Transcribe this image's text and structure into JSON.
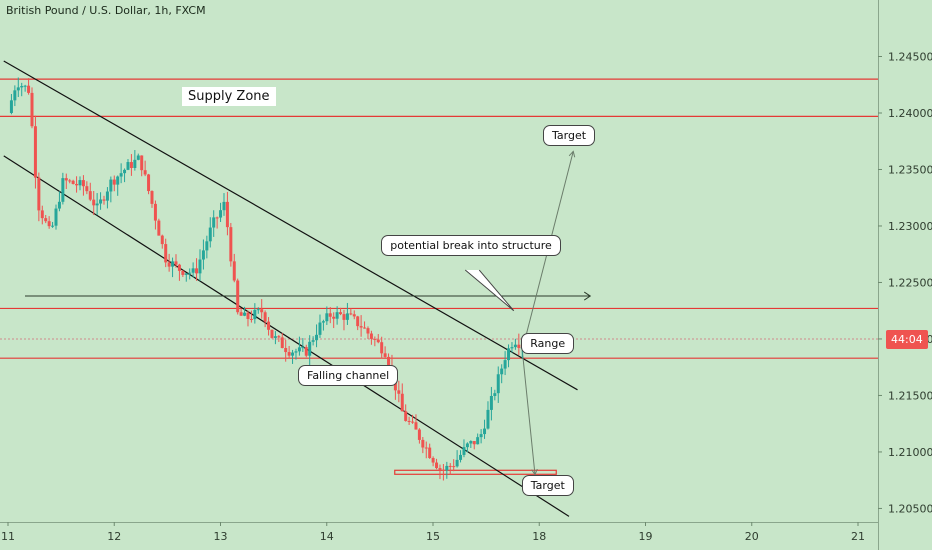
{
  "window": {
    "title": "British Pound / U.S. Dollar, 1h, FXCM"
  },
  "price_tag": "44:04",
  "colors": {
    "background": "#c8e6c9",
    "up": "#26a69a",
    "down": "#ef5350",
    "line": "#111111",
    "zone": "#e53935"
  },
  "chart_data": {
    "type": "candlestick",
    "title": "British Pound / U.S. Dollar, 1h, FXCM",
    "xlim": [
      11,
      21
    ],
    "ylim": [
      1.2038,
      1.25
    ],
    "x_ticks": [
      11,
      12,
      13,
      14,
      15,
      18,
      19,
      20,
      21
    ],
    "y_ticks": [
      "1.20500",
      "1.21000",
      "1.21500",
      "1.22000",
      "1.22500",
      "1.23000",
      "1.23500",
      "1.24000",
      "1.24500"
    ],
    "close_path": [
      [
        11.0,
        1.24
      ],
      [
        11.1,
        1.2428
      ],
      [
        11.25,
        1.242
      ],
      [
        11.35,
        1.232
      ],
      [
        11.5,
        1.2292
      ],
      [
        11.65,
        1.234
      ],
      [
        11.9,
        1.2335
      ],
      [
        12.05,
        1.2315
      ],
      [
        12.2,
        1.2338
      ],
      [
        12.4,
        1.2352
      ],
      [
        12.55,
        1.236
      ],
      [
        12.7,
        1.2318
      ],
      [
        12.85,
        1.2272
      ],
      [
        13.0,
        1.2262
      ],
      [
        13.2,
        1.2258
      ],
      [
        13.4,
        1.23
      ],
      [
        13.55,
        1.232
      ],
      [
        13.7,
        1.2222
      ],
      [
        13.8,
        1.2218
      ],
      [
        14.0,
        1.2225
      ],
      [
        14.1,
        1.2203
      ],
      [
        14.3,
        1.219
      ],
      [
        14.5,
        1.2188
      ],
      [
        14.65,
        1.221
      ],
      [
        14.8,
        1.2222
      ],
      [
        15.0,
        1.222
      ],
      [
        15.15,
        1.2212
      ],
      [
        15.3,
        1.22
      ],
      [
        15.45,
        1.2188
      ],
      [
        15.55,
        1.216
      ],
      [
        15.65,
        1.2132
      ],
      [
        15.8,
        1.2118
      ],
      [
        15.95,
        1.21
      ],
      [
        16.1,
        1.2083
      ],
      [
        16.25,
        1.209
      ],
      [
        16.4,
        1.2105
      ],
      [
        16.55,
        1.2112
      ],
      [
        16.7,
        1.2148
      ],
      [
        16.85,
        1.2185
      ],
      [
        16.95,
        1.22
      ],
      [
        17.05,
        1.2195
      ]
    ],
    "horizontal_levels": [
      1.243,
      1.2397,
      1.2227,
      1.2183
    ],
    "target_zone": {
      "from": 15.55,
      "to": 17.45,
      "level": 1.2082
    },
    "channel_upper": [
      [
        10.95,
        1.2446
      ],
      [
        17.7,
        1.2155
      ]
    ],
    "channel_lower": [
      [
        10.95,
        1.2362
      ],
      [
        17.6,
        1.2043
      ]
    ],
    "projection": [
      [
        11.2,
        1.2238
      ],
      [
        17.85,
        1.2238
      ]
    ],
    "target_up_arrow": [
      [
        17.05,
        1.219
      ],
      [
        17.65,
        1.2366
      ]
    ],
    "target_down_arrow": [
      [
        17.05,
        1.219
      ],
      [
        17.2,
        1.208
      ]
    ],
    "annotations": [
      {
        "text": "Supply Zone",
        "x": 13.6,
        "y": 1.2415,
        "style": "plain"
      },
      {
        "text": "Target",
        "x": 17.6,
        "y": 1.238
      },
      {
        "text": "potential break into structure",
        "x": 16.45,
        "y": 1.2283
      },
      {
        "text": "Range",
        "x": 17.35,
        "y": 1.2196
      },
      {
        "text": "Falling channel",
        "x": 15.0,
        "y": 1.2168
      },
      {
        "text": "Target",
        "x": 17.35,
        "y": 1.207
      }
    ],
    "callout_pointer": {
      "from": [
        16.45,
        1.2261
      ],
      "to": [
        16.95,
        1.2225
      ]
    },
    "grid": false
  }
}
